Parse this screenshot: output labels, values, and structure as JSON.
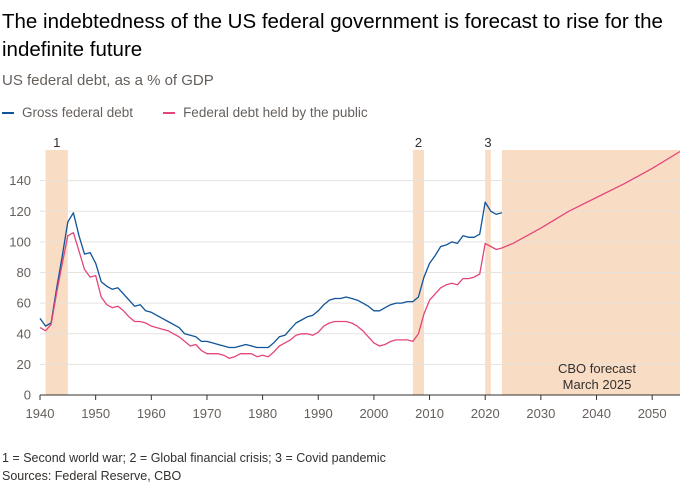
{
  "title": "The indebtedness of the US federal government is forecast to rise for the indefinite future",
  "subtitle": "US federal debt, as a % of GDP",
  "footnote": {
    "line1": "1 = Second world war; 2 = Global financial crisis; 3 = Covid pandemic",
    "line2": "Sources: Federal Reserve, CBO"
  },
  "legend": [
    {
      "label": "Gross federal debt",
      "color": "#0f5499"
    },
    {
      "label": "Federal debt held by the public",
      "color": "#e3467a"
    }
  ],
  "colors": {
    "shade": "#f9dcc4",
    "gross": "#0f5499",
    "public": "#e3467a",
    "grid": "#e6e2dd",
    "axis": "#33302e",
    "tick_text": "#66605c"
  },
  "chart_data": {
    "type": "line",
    "title": "The indebtedness of the US federal government is forecast to rise for the indefinite future",
    "subtitle": "US federal debt, as a % of GDP",
    "xlim": [
      1940,
      2055
    ],
    "ylim": [
      0,
      160
    ],
    "x_ticks": [
      1940,
      1950,
      1960,
      1970,
      1980,
      1990,
      2000,
      2010,
      2020,
      2030,
      2040,
      2050
    ],
    "y_ticks": [
      0,
      20,
      40,
      60,
      80,
      100,
      120,
      140
    ],
    "grid": true,
    "legend_position": "top-left",
    "shaded_periods": [
      {
        "label": "1",
        "start": 1941,
        "end": 1945
      },
      {
        "label": "2",
        "start": 2007,
        "end": 2009
      },
      {
        "label": "3",
        "start": 2020,
        "end": 2021
      },
      {
        "label": "",
        "start": 2023,
        "end": 2055
      }
    ],
    "annotation": [
      "CBO forecast",
      "March 2025"
    ],
    "series": [
      {
        "name": "Gross federal debt",
        "x": [
          1940,
          1941,
          1942,
          1943,
          1944,
          1945,
          1946,
          1947,
          1948,
          1949,
          1950,
          1951,
          1952,
          1953,
          1954,
          1955,
          1956,
          1957,
          1958,
          1959,
          1960,
          1961,
          1962,
          1963,
          1964,
          1965,
          1966,
          1967,
          1968,
          1969,
          1970,
          1971,
          1972,
          1973,
          1974,
          1975,
          1976,
          1977,
          1978,
          1979,
          1980,
          1981,
          1982,
          1983,
          1984,
          1985,
          1986,
          1987,
          1988,
          1989,
          1990,
          1991,
          1992,
          1993,
          1994,
          1995,
          1996,
          1997,
          1998,
          1999,
          2000,
          2001,
          2002,
          2003,
          2004,
          2005,
          2006,
          2007,
          2008,
          2009,
          2010,
          2011,
          2012,
          2013,
          2014,
          2015,
          2016,
          2017,
          2018,
          2019,
          2020,
          2021,
          2022,
          2023
        ],
        "y": [
          50,
          45,
          47,
          70,
          91,
          113,
          119,
          104,
          92,
          93,
          86,
          74,
          71,
          69,
          70,
          66,
          62,
          58,
          59,
          55,
          54,
          52,
          50,
          48,
          46,
          44,
          40,
          39,
          38,
          35,
          35,
          34,
          33,
          32,
          31,
          31,
          32,
          33,
          32,
          31,
          31,
          31,
          34,
          38,
          39,
          43,
          47,
          49,
          51,
          52,
          55,
          59,
          62,
          63,
          63,
          64,
          63,
          62,
          60,
          58,
          55,
          55,
          57,
          59,
          60,
          60,
          61,
          61,
          64,
          77,
          86,
          91,
          97,
          98,
          100,
          99,
          104,
          103,
          103,
          105,
          126,
          120,
          118,
          119
        ]
      },
      {
        "name": "Federal debt held by the public",
        "x": [
          1940,
          1941,
          1942,
          1943,
          1944,
          1945,
          1946,
          1947,
          1948,
          1949,
          1950,
          1951,
          1952,
          1953,
          1954,
          1955,
          1956,
          1957,
          1958,
          1959,
          1960,
          1961,
          1962,
          1963,
          1964,
          1965,
          1966,
          1967,
          1968,
          1969,
          1970,
          1971,
          1972,
          1973,
          1974,
          1975,
          1976,
          1977,
          1978,
          1979,
          1980,
          1981,
          1982,
          1983,
          1984,
          1985,
          1986,
          1987,
          1988,
          1989,
          1990,
          1991,
          1992,
          1993,
          1994,
          1995,
          1996,
          1997,
          1998,
          1999,
          2000,
          2001,
          2002,
          2003,
          2004,
          2005,
          2006,
          2007,
          2008,
          2009,
          2010,
          2011,
          2012,
          2013,
          2014,
          2015,
          2016,
          2017,
          2018,
          2019,
          2020,
          2021,
          2022,
          2023,
          2025,
          2030,
          2035,
          2040,
          2045,
          2050,
          2055
        ],
        "y": [
          44,
          42,
          46,
          67,
          86,
          104,
          106,
          94,
          82,
          77,
          78,
          64,
          59,
          57,
          58,
          55,
          51,
          48,
          48,
          47,
          45,
          44,
          43,
          42,
          40,
          38,
          35,
          32,
          33,
          29,
          27,
          27,
          27,
          26,
          24,
          25,
          27,
          27,
          27,
          25,
          26,
          25,
          28,
          32,
          34,
          36,
          39,
          40,
          40,
          39,
          41,
          45,
          47,
          48,
          48,
          48,
          47,
          45,
          42,
          38,
          34,
          32,
          33,
          35,
          36,
          36,
          36,
          35,
          40,
          53,
          62,
          66,
          70,
          72,
          73,
          72,
          76,
          76,
          77,
          79,
          99,
          97,
          95,
          96,
          99,
          109,
          120,
          129,
          138,
          148,
          159
        ]
      }
    ]
  }
}
